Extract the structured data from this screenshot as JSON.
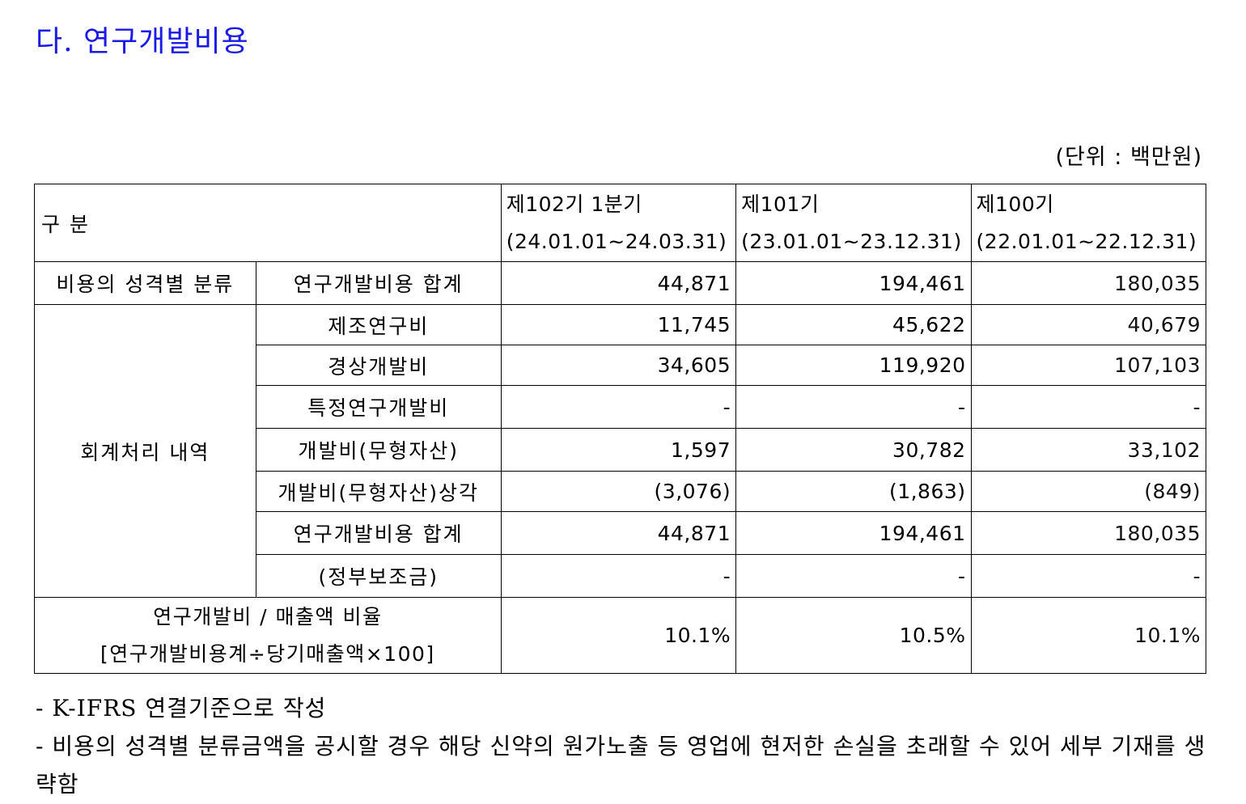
{
  "section_title": "다. 연구개발비용",
  "unit": "(단위 : 백만원)",
  "table": {
    "header": {
      "label": "구   분",
      "periods": [
        {
          "name": "제102기 1분기",
          "range": "(24.01.01~24.03.31)"
        },
        {
          "name": "제101기",
          "range": "(23.01.01~23.12.31)"
        },
        {
          "name": "제100기",
          "range": "(22.01.01~22.12.31)"
        }
      ]
    },
    "nature_group": "비용의 성격별 분류",
    "nature_row": {
      "label": "연구개발비용 합계",
      "values": [
        "44,871",
        "194,461",
        "180,035"
      ]
    },
    "accounting_group": "회계처리 내역",
    "accounting_rows": [
      {
        "label": "제조연구비",
        "values": [
          "11,745",
          "45,622",
          "40,679"
        ]
      },
      {
        "label": "경상개발비",
        "values": [
          "34,605",
          "119,920",
          "107,103"
        ]
      },
      {
        "label": "특정연구개발비",
        "values": [
          "-",
          "-",
          "-"
        ]
      },
      {
        "label": "개발비(무형자산)",
        "values": [
          "1,597",
          "30,782",
          "33,102"
        ]
      },
      {
        "label": "개발비(무형자산)상각",
        "values": [
          "(3,076)",
          "(1,863)",
          "(849)"
        ]
      },
      {
        "label": "연구개발비용 합계",
        "values": [
          "44,871",
          "194,461",
          "180,035"
        ]
      },
      {
        "label": "(정부보조금)",
        "values": [
          "-",
          "-",
          "-"
        ]
      }
    ],
    "ratio": {
      "label_line1": "연구개발비 / 매출액 비율",
      "label_line2": "[연구개발비용계÷당기매출액×100]",
      "values": [
        "10.1%",
        "10.5%",
        "10.1%"
      ]
    }
  },
  "notes": [
    "- K-IFRS 연결기준으로 작성",
    "- 비용의 성격별 분류금액을 공시할 경우 해당 신약의 원가노출 등 영업에 현저한 손실을 초래할 수 있어 세부 기재를 생략함"
  ]
}
